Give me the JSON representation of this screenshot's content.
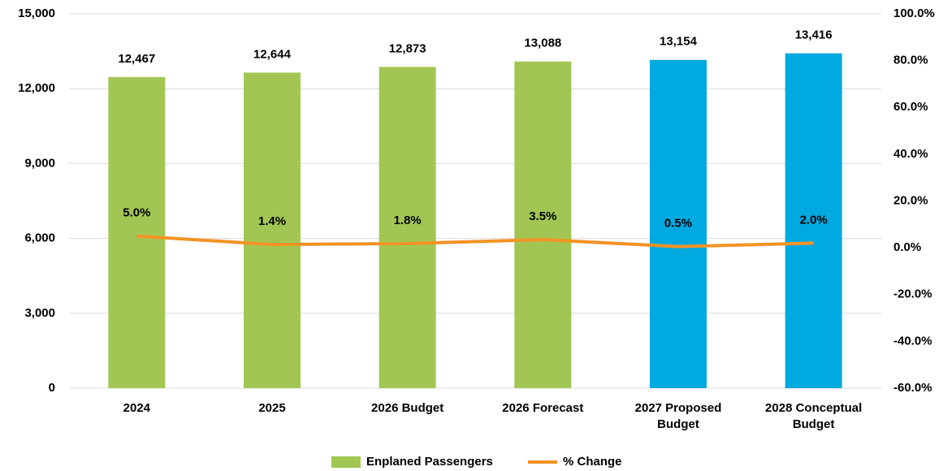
{
  "chart_data": {
    "type": "bar_line",
    "categories": [
      "2024",
      "2025",
      "2026 Budget",
      "2026 Forecast",
      "2027 Proposed Budget",
      "2028 Conceptual Budget"
    ],
    "series": [
      {
        "name": "Enplaned Passengers",
        "type": "bar",
        "color": "#a2c653",
        "colors": [
          "#a2c653",
          "#a2c653",
          "#a2c653",
          "#a2c653",
          "#00a9e0",
          "#00a9e0"
        ],
        "values": [
          12467,
          12644,
          12873,
          13088,
          13154,
          13416
        ],
        "value_labels": [
          "12,467",
          "12,644",
          "12,873",
          "13,088",
          "13,154",
          "13,416"
        ]
      },
      {
        "name": "% Change",
        "type": "line",
        "axis": "y2",
        "color": "#f39325",
        "values": [
          5.0,
          1.4,
          1.8,
          3.5,
          0.5,
          2.0
        ],
        "value_labels": [
          "5.0%",
          "1.4%",
          "1.8%",
          "3.5%",
          "0.5%",
          "2.0%"
        ]
      }
    ],
    "ylim": [
      0,
      15000
    ],
    "yticks": [
      0,
      {
        "value": 3000,
        "label": "3,000"
      },
      {
        "value": 6000,
        "label": "6,000"
      },
      {
        "value": 9000,
        "label": "9,000"
      },
      {
        "value": 12000,
        "label": "12,000"
      },
      {
        "value": 15000,
        "label": "15,000"
      }
    ],
    "y2lim": [
      -60,
      100
    ],
    "y2ticks": [
      {
        "value": -60,
        "label": "-60.0%"
      },
      {
        "value": -40,
        "label": "-40.0%"
      },
      {
        "value": -20,
        "label": "-20.0%"
      },
      {
        "value": 0,
        "label": "0.0%"
      },
      {
        "value": 20,
        "label": "20.0%"
      },
      {
        "value": 40,
        "label": "40.0%"
      },
      {
        "value": 60,
        "label": "60.0%"
      },
      {
        "value": 80,
        "label": "80.0%"
      },
      {
        "value": 100,
        "label": "100.0%"
      }
    ],
    "grid": true,
    "legend": "bottom"
  }
}
